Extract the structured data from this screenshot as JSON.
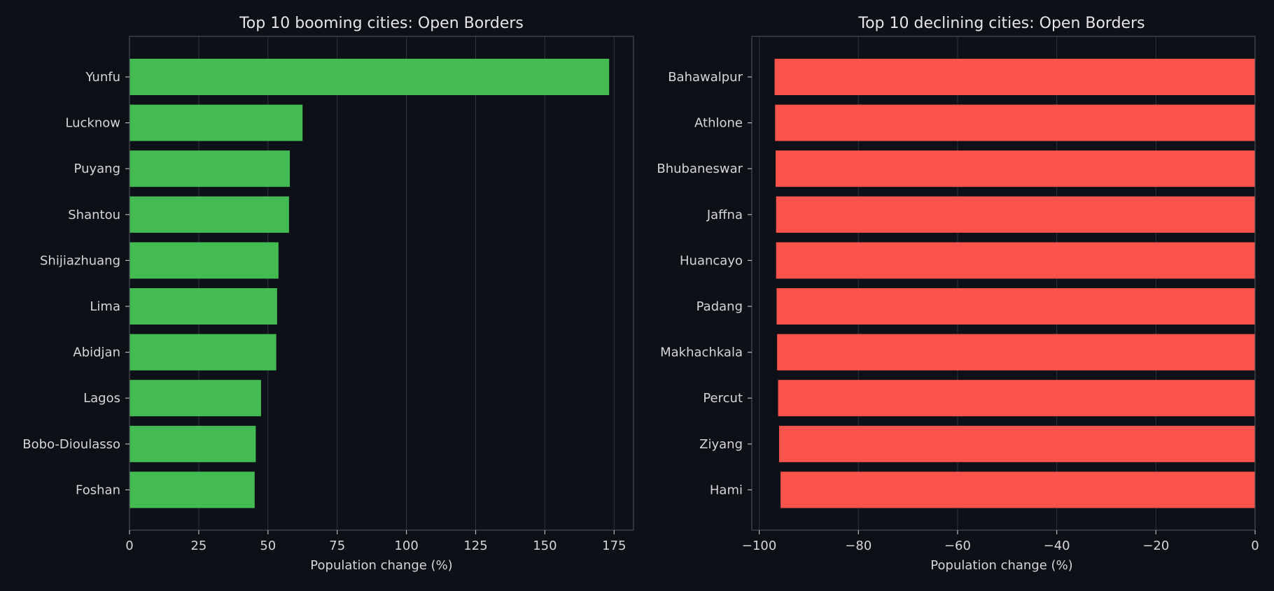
{
  "chart_data": [
    {
      "type": "bar",
      "orientation": "horizontal",
      "title": "Top 10 booming cities: Open Borders",
      "xlabel": "Population change (%)",
      "ylabel": "",
      "categories": [
        "Yunfu",
        "Lucknow",
        "Puyang",
        "Shantou",
        "Shijiazhuang",
        "Lima",
        "Abidjan",
        "Lagos",
        "Bobo-Dioulasso",
        "Foshan"
      ],
      "values": [
        173.2,
        62.5,
        57.9,
        57.6,
        53.8,
        53.3,
        53.0,
        47.5,
        45.6,
        45.2
      ],
      "xlim": [
        0,
        182
      ],
      "xticks": [
        0,
        25,
        50,
        75,
        100,
        125,
        150,
        175
      ],
      "xtick_labels": [
        "0",
        "25",
        "50",
        "75",
        "100",
        "125",
        "150",
        "175"
      ],
      "color": "#43bb52",
      "grid": true
    },
    {
      "type": "bar",
      "orientation": "horizontal",
      "title": "Top 10 declining cities: Open Borders",
      "xlabel": "Population change (%)",
      "ylabel": "",
      "categories": [
        "Bahawalpur",
        "Athlone",
        "Bhubaneswar",
        "Jaffna",
        "Huancayo",
        "Padang",
        "Makhachkala",
        "Percut",
        "Ziyang",
        "Hami"
      ],
      "values": [
        -96.9,
        -96.8,
        -96.7,
        -96.6,
        -96.6,
        -96.5,
        -96.4,
        -96.2,
        -96.0,
        -95.7
      ],
      "xlim": [
        -101.5,
        0
      ],
      "xticks": [
        -100,
        -80,
        -60,
        -40,
        -20,
        0
      ],
      "xtick_labels": [
        "−100",
        "−80",
        "−60",
        "−40",
        "−20",
        "0"
      ],
      "color": "#f9534c",
      "grid": true
    }
  ]
}
